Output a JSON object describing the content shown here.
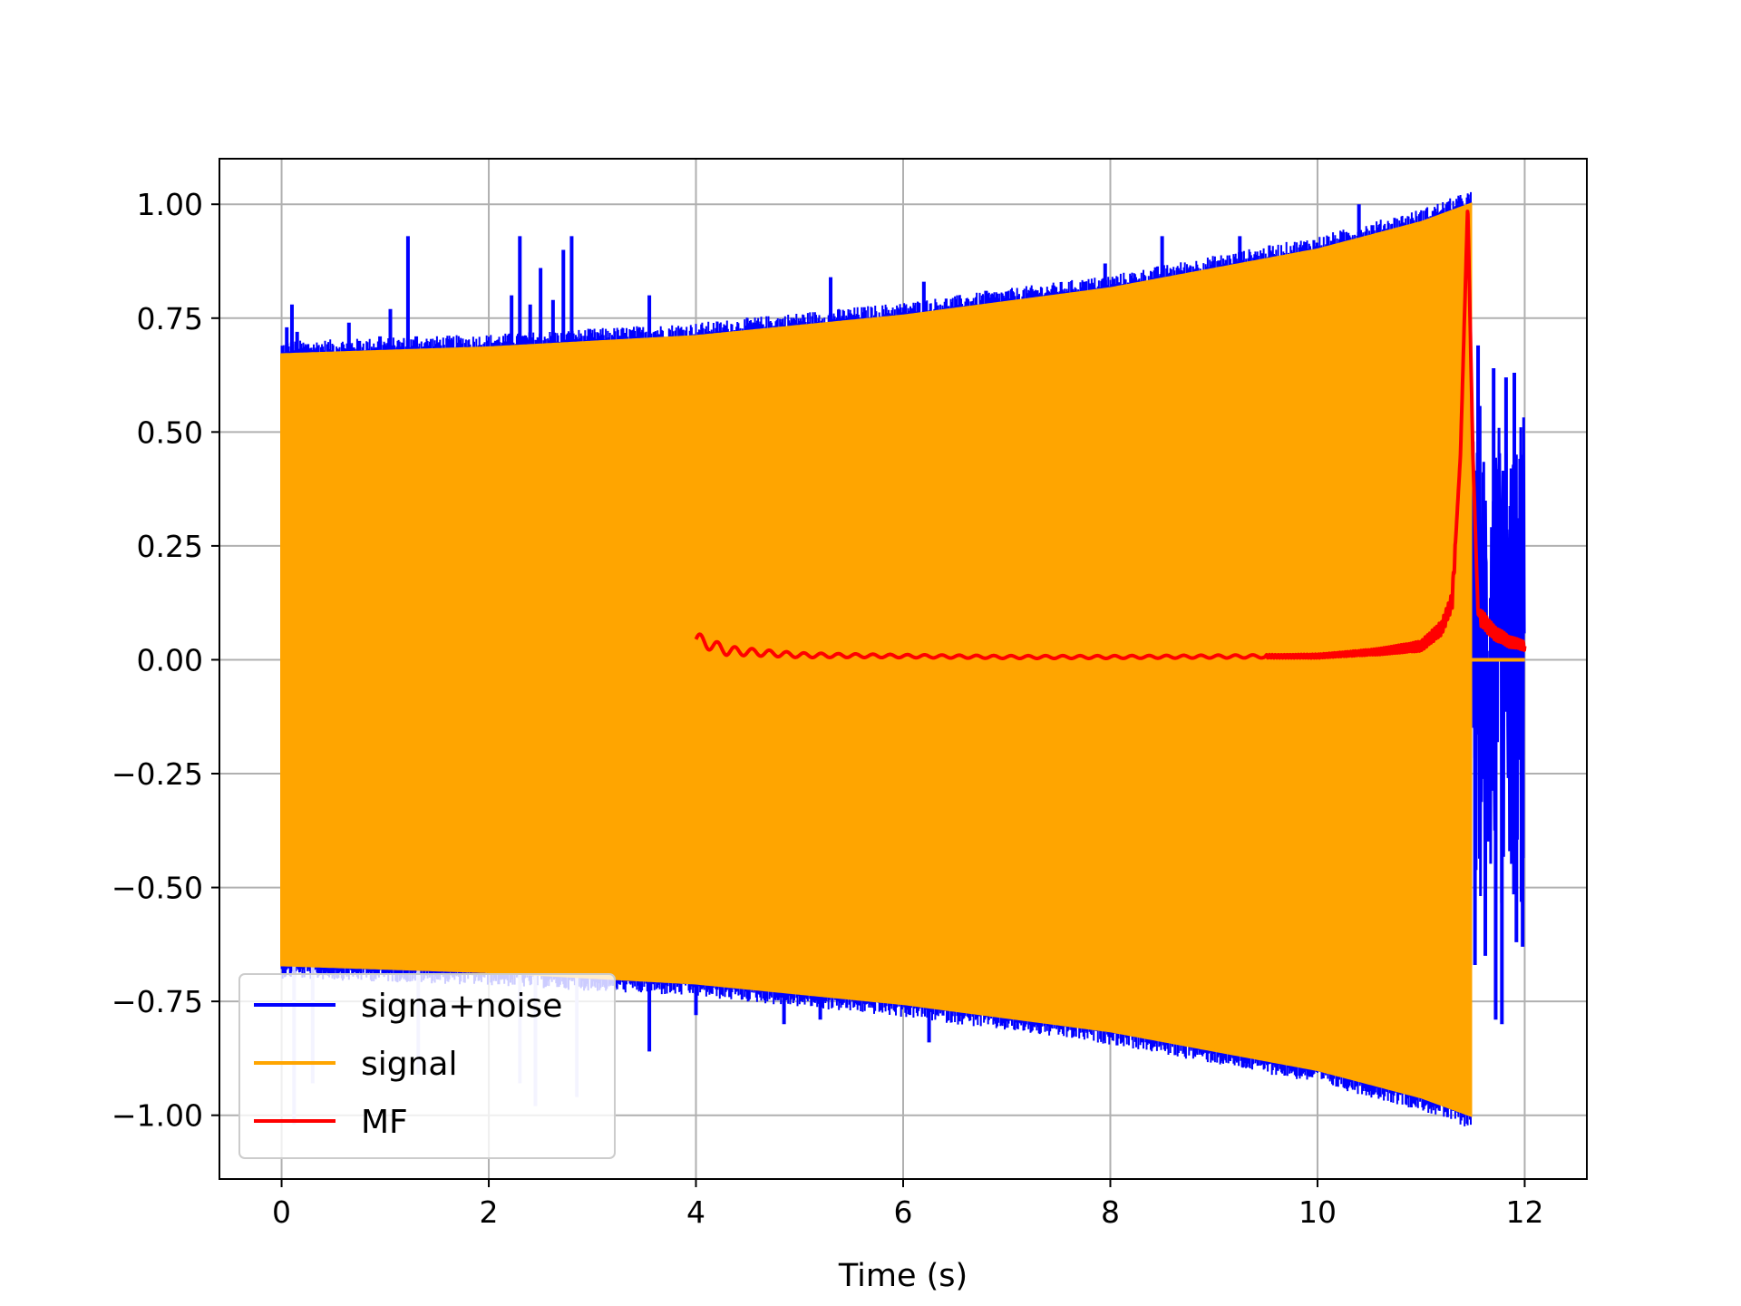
{
  "chart_data": {
    "type": "line",
    "title": "",
    "xlabel": "Time (s)",
    "ylabel": "",
    "xlim": [
      -0.6,
      12.6
    ],
    "ylim": [
      -1.14,
      1.1
    ],
    "x_ticks": [
      0,
      2,
      4,
      6,
      8,
      10,
      12
    ],
    "x_tick_labels": [
      "0",
      "2",
      "4",
      "6",
      "8",
      "10",
      "12"
    ],
    "y_ticks": [
      1.0,
      0.75,
      0.5,
      0.25,
      0.0,
      -0.25,
      -0.5,
      -0.75,
      -1.0
    ],
    "y_tick_labels": [
      "1.00",
      "0.75",
      "0.50",
      "0.25",
      "0.00",
      "−0.25",
      "−0.50",
      "−0.75",
      "−1.00"
    ],
    "grid": true,
    "legend_position": "lower-left",
    "series": [
      {
        "name": "signa+noise",
        "color": "#0000ff",
        "kind": "noisy-oscillation",
        "x_range": [
          0,
          12
        ],
        "spike_peaks": [
          [
            0.05,
            0.73
          ],
          [
            0.1,
            0.78
          ],
          [
            0.15,
            0.72
          ],
          [
            0.65,
            0.74
          ],
          [
            0.75,
            0.7
          ],
          [
            0.95,
            0.71
          ],
          [
            1.05,
            0.77
          ],
          [
            1.22,
            0.93
          ],
          [
            1.3,
            0.71
          ],
          [
            2.22,
            0.8
          ],
          [
            2.3,
            0.93
          ],
          [
            2.4,
            0.78
          ],
          [
            2.5,
            0.86
          ],
          [
            2.62,
            0.79
          ],
          [
            2.72,
            0.9
          ],
          [
            2.8,
            0.93
          ],
          [
            3.2,
            0.71
          ],
          [
            3.55,
            0.8
          ],
          [
            5.3,
            0.84
          ],
          [
            6.2,
            0.83
          ],
          [
            6.8,
            0.81
          ],
          [
            7.75,
            0.83
          ],
          [
            7.95,
            0.87
          ],
          [
            8.5,
            0.93
          ],
          [
            9.25,
            0.93
          ],
          [
            10.4,
            1.0
          ]
        ],
        "spike_troughs": [
          [
            0.12,
            -1.02
          ],
          [
            0.3,
            -0.93
          ],
          [
            1.32,
            -0.91
          ],
          [
            2.3,
            -0.93
          ],
          [
            2.45,
            -0.98
          ],
          [
            2.85,
            -0.96
          ],
          [
            3.55,
            -0.86
          ],
          [
            4.0,
            -0.78
          ],
          [
            4.85,
            -0.8
          ],
          [
            5.2,
            -0.79
          ],
          [
            6.25,
            -0.84
          ],
          [
            7.6,
            -0.8
          ],
          [
            7.75,
            -0.81
          ],
          [
            8.2,
            -0.82
          ],
          [
            8.3,
            -0.84
          ],
          [
            9.3,
            -0.86
          ],
          [
            11.35,
            -0.98
          ]
        ],
        "tail": {
          "x_range": [
            11.5,
            12.0
          ],
          "amplitude": 0.6,
          "peaks": [
            [
              11.55,
              0.69
            ],
            [
              11.7,
              0.64
            ],
            [
              11.82,
              0.62
            ],
            [
              11.9,
              0.63
            ],
            [
              11.97,
              0.45
            ]
          ],
          "troughs": [
            [
              11.52,
              -0.67
            ],
            [
              11.62,
              -0.65
            ],
            [
              11.72,
              -0.79
            ],
            [
              11.78,
              -0.8
            ],
            [
              11.92,
              -0.62
            ],
            [
              11.98,
              -0.63
            ]
          ]
        }
      },
      {
        "name": "signal",
        "color": "#ffa500",
        "kind": "chirp-envelope",
        "x_range": [
          0,
          11.48
        ],
        "envelope": [
          [
            0,
            0.67
          ],
          [
            2,
            0.685
          ],
          [
            4,
            0.71
          ],
          [
            6,
            0.755
          ],
          [
            8,
            0.815
          ],
          [
            10,
            0.9
          ],
          [
            11,
            0.96
          ],
          [
            11.48,
            1.0
          ]
        ],
        "after": {
          "x_range": [
            11.48,
            12.0
          ],
          "y": 0.0
        }
      },
      {
        "name": "MF",
        "color": "#ff0000",
        "kind": "matched-filter",
        "x_range": [
          4.0,
          12.0
        ],
        "baseline": 0.005,
        "peak": [
          11.45,
          1.0
        ],
        "points": [
          [
            4.0,
            0.045
          ],
          [
            4.3,
            0.02
          ],
          [
            5.0,
            0.01
          ],
          [
            6.0,
            0.008
          ],
          [
            7.0,
            0.006
          ],
          [
            8.0,
            0.006
          ],
          [
            9.0,
            0.007
          ],
          [
            10.0,
            0.008
          ],
          [
            10.6,
            0.018
          ],
          [
            11.0,
            0.03
          ],
          [
            11.2,
            0.07
          ],
          [
            11.3,
            0.13
          ],
          [
            11.38,
            0.45
          ],
          [
            11.45,
            1.0
          ],
          [
            11.5,
            0.45
          ],
          [
            11.55,
            0.1
          ],
          [
            11.7,
            0.06
          ],
          [
            11.85,
            0.04
          ],
          [
            12.0,
            0.03
          ]
        ]
      }
    ]
  }
}
